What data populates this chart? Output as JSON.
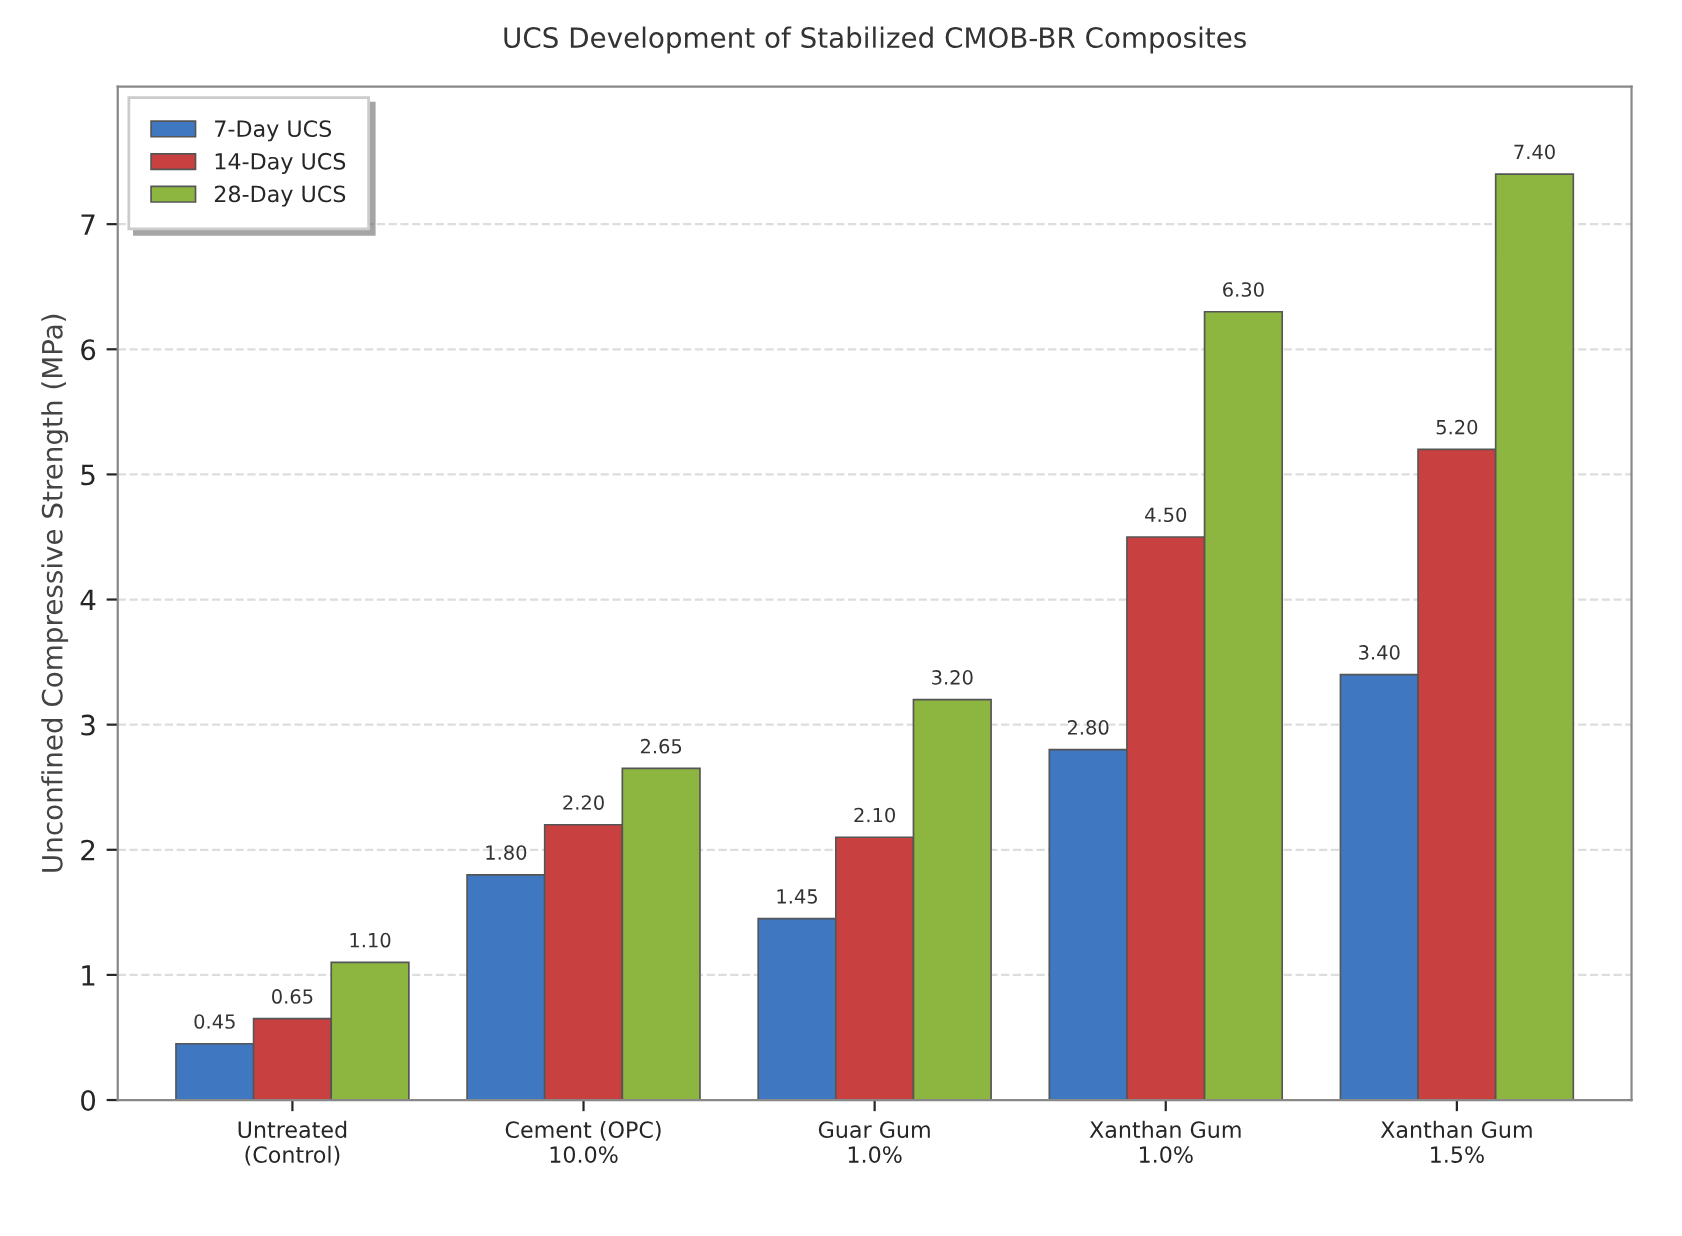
{
  "chart_data": {
    "type": "bar",
    "title": "UCS Development of Stabilized CMOB-BR Composites",
    "ylabel": "Unconfined Compressive Strength (MPa)",
    "categories": [
      "Untreated\n(Control)",
      "Cement (OPC)\n10.0%",
      "Guar Gum\n1.0%",
      "Xanthan Gum\n1.0%",
      "Xanthan Gum\n1.5%"
    ],
    "series": [
      {
        "name": "7-Day UCS",
        "color": "#3f78c1",
        "values": [
          0.45,
          1.8,
          1.45,
          2.8,
          3.4
        ],
        "value_labels": [
          "0.45",
          "1.80",
          "1.45",
          "2.80",
          "3.40"
        ]
      },
      {
        "name": "14-Day UCS",
        "color": "#c94040",
        "values": [
          0.65,
          2.2,
          2.1,
          4.5,
          5.2
        ],
        "value_labels": [
          "0.65",
          "2.20",
          "2.10",
          "4.50",
          "5.20"
        ]
      },
      {
        "name": "28-Day UCS",
        "color": "#8db641",
        "values": [
          1.1,
          2.65,
          3.2,
          6.3,
          7.4
        ],
        "value_labels": [
          "1.10",
          "2.65",
          "3.20",
          "6.30",
          "7.40"
        ]
      }
    ],
    "ylim": [
      0,
      8.1
    ],
    "yticks": [
      0,
      1,
      2,
      3,
      4,
      5,
      6,
      7
    ],
    "grid": "y",
    "legend": "top left"
  }
}
